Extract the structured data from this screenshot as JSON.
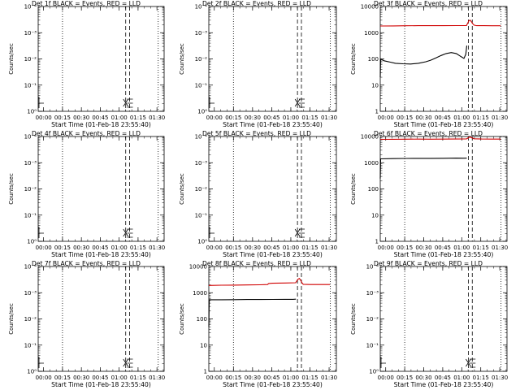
{
  "colors": {
    "events": "#000000",
    "lld": "#d00000",
    "axes": "#000000"
  },
  "chart_data": [
    {
      "type": "line",
      "title": "Det 1f BLACK = Events, RED = LLD",
      "xlabel": "Start Time (01-Feb-18 23:55:40)",
      "ylabel": "Counts/sec",
      "yscale": "log",
      "ylim": [
        1,
        10000
      ],
      "ytick_labels": [
        "10⁰",
        "10⁻¹",
        "10⁻²",
        "10⁻³",
        "10⁻⁴"
      ],
      "xlim": [
        0,
        100
      ],
      "x_ticks": [
        4.3,
        19.3,
        34.3,
        49.3,
        64.3,
        79.3,
        94.3
      ],
      "x_tick_labels": [
        "00:00",
        "00:15",
        "00:30",
        "00:45",
        "01:00",
        "01:15",
        "01:30"
      ],
      "vlines": [
        {
          "x": 19.3,
          "style": "dotted"
        },
        {
          "x": 69.5,
          "style": "dashed"
        },
        {
          "x": 72.6,
          "style": "dashed"
        },
        {
          "x": 95.3,
          "style": "dotted"
        }
      ],
      "series": []
    },
    {
      "type": "line",
      "title": "Det 2f BLACK = Events, RED = LLD",
      "xlabel": "Start Time (01-Feb-18 23:55:40)",
      "ylabel": "Counts/sec",
      "yscale": "log",
      "ylim": [
        1,
        10000
      ],
      "ytick_labels": [
        "10⁰",
        "10⁻¹",
        "10⁻²",
        "10⁻³",
        "10⁻⁴"
      ],
      "xlim": [
        0,
        100
      ],
      "x_ticks": [
        4.3,
        19.3,
        34.3,
        49.3,
        64.3,
        79.3,
        94.3
      ],
      "x_tick_labels": [
        "00:00",
        "00:15",
        "00:30",
        "00:45",
        "01:00",
        "01:15",
        "01:30"
      ],
      "vlines": [
        {
          "x": 19.3,
          "style": "dotted"
        },
        {
          "x": 69.5,
          "style": "dashed"
        },
        {
          "x": 72.6,
          "style": "dashed"
        },
        {
          "x": 95.3,
          "style": "dotted"
        }
      ],
      "series": []
    },
    {
      "type": "line",
      "title": "Det 3f BLACK = Events, RED = LLD",
      "xlabel": "Start Time (01-Feb-18 23:55:40)",
      "ylabel": "Counts/sec",
      "yscale": "log",
      "ylim": [
        1,
        10000
      ],
      "ytick_labels": [
        "1",
        "10",
        "100",
        "1000",
        "10000"
      ],
      "xlim": [
        0,
        100
      ],
      "x_ticks": [
        4.3,
        19.3,
        34.3,
        49.3,
        64.3,
        79.3,
        94.3
      ],
      "x_tick_labels": [
        "00:00",
        "00:15",
        "00:30",
        "00:45",
        "01:00",
        "01:15",
        "01:30"
      ],
      "vlines": [
        {
          "x": 19.3,
          "style": "dotted"
        },
        {
          "x": 69.5,
          "style": "dashed"
        },
        {
          "x": 72.6,
          "style": "dashed"
        },
        {
          "x": 95.3,
          "style": "dotted"
        }
      ],
      "series": [
        {
          "color": "lld",
          "x": [
            0,
            10,
            20,
            30,
            40,
            50,
            60,
            68,
            69,
            70,
            71,
            72,
            73,
            74,
            76,
            82,
            88,
            95
          ],
          "y": [
            1800,
            1820,
            1840,
            1860,
            1850,
            1860,
            1870,
            1880,
            2300,
            2900,
            3000,
            2600,
            2200,
            1950,
            1850,
            1850,
            1840,
            1840
          ]
        },
        {
          "color": "events",
          "x": [
            0,
            0.3,
            3,
            8,
            12,
            18,
            24,
            30,
            36,
            40,
            44,
            48,
            52,
            56,
            60,
            64,
            66,
            67.5,
            68.3
          ],
          "y": [
            20,
            100,
            85,
            75,
            68,
            65,
            64,
            68,
            78,
            90,
            110,
            135,
            160,
            175,
            160,
            120,
            105,
            150,
            320
          ]
        }
      ]
    },
    {
      "type": "line",
      "title": "Det 4f BLACK = Events, RED = LLD",
      "xlabel": "Start Time (01-Feb-18 23:55:40)",
      "ylabel": "Counts/sec",
      "yscale": "log",
      "ylim": [
        1,
        10000
      ],
      "ytick_labels": [
        "10⁰",
        "10⁻¹",
        "10⁻²",
        "10⁻³",
        "10⁻⁴"
      ],
      "xlim": [
        0,
        100
      ],
      "x_ticks": [
        4.3,
        19.3,
        34.3,
        49.3,
        64.3,
        79.3,
        94.3
      ],
      "x_tick_labels": [
        "00:00",
        "00:15",
        "00:30",
        "00:45",
        "01:00",
        "01:15",
        "01:30"
      ],
      "vlines": [
        {
          "x": 19.3,
          "style": "dotted"
        },
        {
          "x": 69.5,
          "style": "dashed"
        },
        {
          "x": 72.6,
          "style": "dashed"
        },
        {
          "x": 95.3,
          "style": "dotted"
        }
      ],
      "series": []
    },
    {
      "type": "line",
      "title": "Det 5f BLACK = Events, RED = LLD",
      "xlabel": "Start Time (01-Feb-18 23:55:40)",
      "ylabel": "Counts/sec",
      "yscale": "log",
      "ylim": [
        1,
        10000
      ],
      "ytick_labels": [
        "10⁰",
        "10⁻¹",
        "10⁻²",
        "10⁻³",
        "10⁻⁴"
      ],
      "xlim": [
        0,
        100
      ],
      "x_ticks": [
        4.3,
        19.3,
        34.3,
        49.3,
        64.3,
        79.3,
        94.3
      ],
      "x_tick_labels": [
        "00:00",
        "00:15",
        "00:30",
        "00:45",
        "01:00",
        "01:15",
        "01:30"
      ],
      "vlines": [
        {
          "x": 19.3,
          "style": "dotted"
        },
        {
          "x": 69.5,
          "style": "dashed"
        },
        {
          "x": 72.6,
          "style": "dashed"
        },
        {
          "x": 95.3,
          "style": "dotted"
        }
      ],
      "series": []
    },
    {
      "type": "line",
      "title": "Det 6f BLACK = Events, RED = LLD",
      "xlabel": "Start Time (01-Feb-18 23:55:40)",
      "ylabel": "Counts/sec",
      "yscale": "log",
      "ylim": [
        1,
        10000
      ],
      "ytick_labels": [
        "1",
        "10",
        "100",
        "1000",
        "10000"
      ],
      "xlim": [
        0,
        100
      ],
      "x_ticks": [
        4.3,
        19.3,
        34.3,
        49.3,
        64.3,
        79.3,
        94.3
      ],
      "x_tick_labels": [
        "00:00",
        "00:15",
        "00:30",
        "00:45",
        "01:00",
        "01:15",
        "01:30"
      ],
      "vlines": [
        {
          "x": 19.3,
          "style": "dotted"
        },
        {
          "x": 69.5,
          "style": "dashed"
        },
        {
          "x": 72.6,
          "style": "dashed"
        },
        {
          "x": 95.3,
          "style": "dotted"
        }
      ],
      "series": [
        {
          "color": "lld",
          "x": [
            0,
            10,
            20,
            30,
            40,
            50,
            60,
            68,
            69,
            70,
            71,
            72,
            73,
            74,
            80,
            88,
            95
          ],
          "y": [
            7800,
            7850,
            7900,
            7950,
            7900,
            7950,
            8000,
            8050,
            8600,
            9300,
            9500,
            9000,
            8600,
            8200,
            8000,
            7950,
            7950
          ]
        },
        {
          "color": "events",
          "x": [
            0,
            0.3,
            10,
            20,
            30,
            40,
            50,
            60,
            66,
            68.3
          ],
          "y": [
            250,
            1400,
            1430,
            1450,
            1470,
            1460,
            1480,
            1500,
            1490,
            1500
          ]
        }
      ]
    },
    {
      "type": "line",
      "title": "Det 7f BLACK = Events, RED = LLD",
      "xlabel": "Start Time (01-Feb-18 23:55:40)",
      "ylabel": "Counts/sec",
      "yscale": "log",
      "ylim": [
        1,
        10000
      ],
      "ytick_labels": [
        "10⁰",
        "10⁻¹",
        "10⁻²",
        "10⁻³",
        "10⁻⁴"
      ],
      "xlim": [
        0,
        100
      ],
      "x_ticks": [
        4.3,
        19.3,
        34.3,
        49.3,
        64.3,
        79.3,
        94.3
      ],
      "x_tick_labels": [
        "00:00",
        "00:15",
        "00:30",
        "00:45",
        "01:00",
        "01:15",
        "01:30"
      ],
      "vlines": [
        {
          "x": 19.3,
          "style": "dotted"
        },
        {
          "x": 69.5,
          "style": "dashed"
        },
        {
          "x": 72.6,
          "style": "dashed"
        },
        {
          "x": 95.3,
          "style": "dotted"
        }
      ],
      "series": []
    },
    {
      "type": "line",
      "title": "Det 8f BLACK = Events, RED = LLD",
      "xlabel": "Start Time (01-Feb-18 23:55:40)",
      "ylabel": "Counts/sec",
      "yscale": "log",
      "ylim": [
        1,
        10000
      ],
      "ytick_labels": [
        "1",
        "10",
        "100",
        "1000",
        "10000"
      ],
      "xlim": [
        0,
        100
      ],
      "x_ticks": [
        4.3,
        19.3,
        34.3,
        49.3,
        64.3,
        79.3,
        94.3
      ],
      "x_tick_labels": [
        "00:00",
        "00:15",
        "00:30",
        "00:45",
        "01:00",
        "01:15",
        "01:30"
      ],
      "vlines": [
        {
          "x": 19.3,
          "style": "dotted"
        },
        {
          "x": 69.5,
          "style": "dashed"
        },
        {
          "x": 72.6,
          "style": "dashed"
        },
        {
          "x": 95.3,
          "style": "dotted"
        }
      ],
      "series": [
        {
          "color": "lld",
          "x": [
            0,
            10,
            20,
            30,
            40,
            46,
            47,
            50,
            60,
            68,
            69,
            70,
            71,
            72,
            73,
            74,
            80,
            88,
            95
          ],
          "y": [
            1900,
            1930,
            1950,
            1980,
            2000,
            2050,
            2250,
            2300,
            2350,
            2400,
            2800,
            3300,
            3500,
            3000,
            2400,
            2100,
            2050,
            2050,
            2050
          ]
        },
        {
          "color": "events",
          "x": [
            0,
            0.3,
            10,
            20,
            30,
            40,
            50,
            60,
            66,
            68.3
          ],
          "y": [
            50,
            540,
            540,
            545,
            550,
            550,
            555,
            560,
            560,
            565
          ]
        }
      ]
    },
    {
      "type": "line",
      "title": "Det 9f BLACK = Events, RED = LLD",
      "xlabel": "Start Time (01-Feb-18 23:55:40)",
      "ylabel": "Counts/sec",
      "yscale": "log",
      "ylim": [
        1,
        10000
      ],
      "ytick_labels": [
        "10⁰",
        "10⁻¹",
        "10⁻²",
        "10⁻³",
        "10⁻⁴"
      ],
      "xlim": [
        0,
        100
      ],
      "x_ticks": [
        4.3,
        19.3,
        34.3,
        49.3,
        64.3,
        79.3,
        94.3
      ],
      "x_tick_labels": [
        "00:00",
        "00:15",
        "00:30",
        "00:45",
        "01:00",
        "01:15",
        "01:30"
      ],
      "vlines": [
        {
          "x": 19.3,
          "style": "dotted"
        },
        {
          "x": 69.5,
          "style": "dashed"
        },
        {
          "x": 72.6,
          "style": "dashed"
        },
        {
          "x": 95.3,
          "style": "dotted"
        }
      ],
      "series": []
    }
  ]
}
